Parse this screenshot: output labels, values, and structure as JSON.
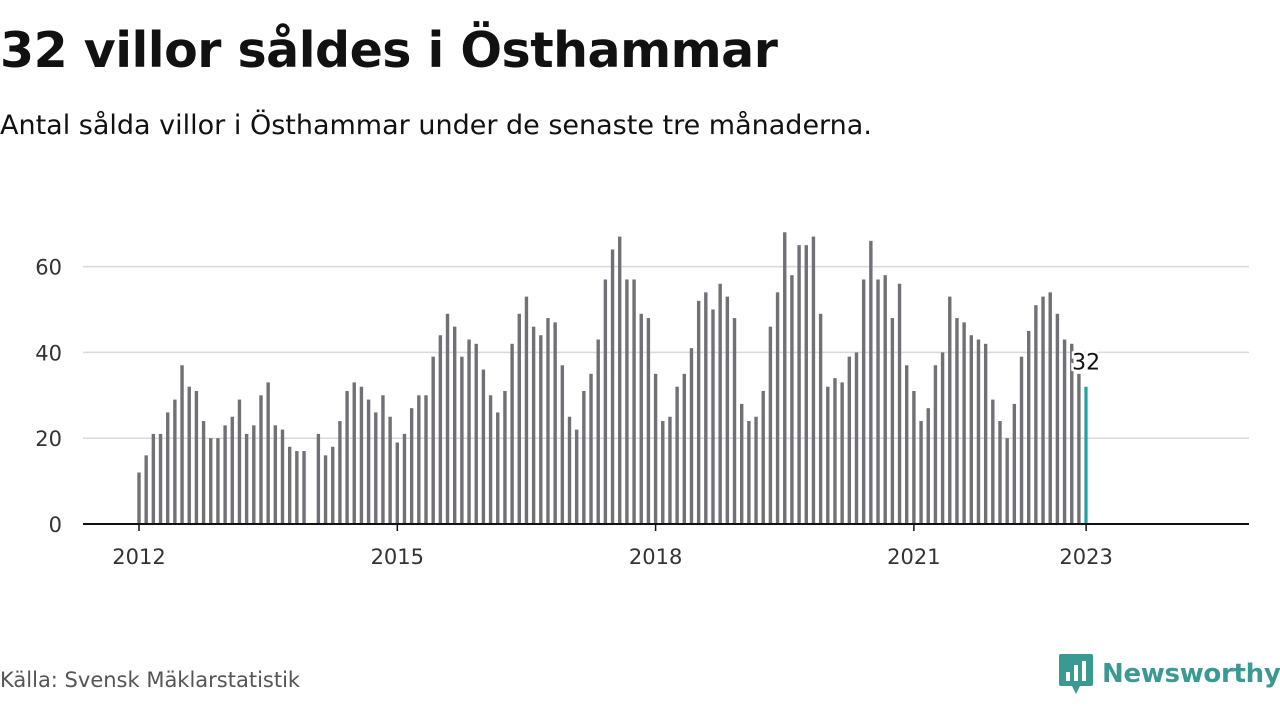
{
  "chart_data": {
    "type": "bar",
    "title": "32 villor såldes i Östhammar",
    "subtitle": "Antal sålda villor i Östhammar under de senaste tre månaderna.",
    "xlabel": "",
    "ylabel": "",
    "ylim": [
      0,
      70
    ],
    "yticks": [
      0,
      20,
      40,
      60
    ],
    "x_tick_labels": [
      "2012",
      "2015",
      "2018",
      "2021",
      "2023"
    ],
    "grid": "horizontal",
    "x_start": "2012-01",
    "x_end": "2023-01",
    "bar_color": "#717076",
    "highlight_color": "#20a39e",
    "highlight_label": "32",
    "values": [
      12,
      16,
      21,
      21,
      26,
      29,
      37,
      32,
      31,
      24,
      20,
      20,
      23,
      25,
      29,
      21,
      23,
      30,
      33,
      23,
      22,
      18,
      17,
      17,
      null,
      21,
      16,
      18,
      24,
      31,
      33,
      32,
      29,
      26,
      30,
      25,
      19,
      21,
      27,
      30,
      30,
      39,
      44,
      49,
      46,
      39,
      43,
      42,
      36,
      30,
      26,
      31,
      42,
      49,
      53,
      46,
      44,
      48,
      47,
      37,
      25,
      22,
      31,
      35,
      43,
      57,
      64,
      67,
      57,
      57,
      49,
      48,
      35,
      24,
      25,
      32,
      35,
      41,
      52,
      54,
      50,
      56,
      53,
      48,
      28,
      24,
      25,
      31,
      46,
      54,
      68,
      58,
      65,
      65,
      67,
      49,
      32,
      34,
      33,
      39,
      40,
      57,
      66,
      57,
      58,
      48,
      56,
      37,
      31,
      24,
      27,
      37,
      40,
      53,
      48,
      47,
      44,
      43,
      42,
      29,
      24,
      20,
      28,
      39,
      45,
      51,
      53,
      54,
      49,
      43,
      42,
      35,
      32
    ]
  },
  "footer": {
    "source": "Källa: Svensk Mäklarstatistik",
    "brand": "Newsworthy"
  },
  "icons": {
    "brand_icon": "newsworthy-chat-chart-icon"
  }
}
